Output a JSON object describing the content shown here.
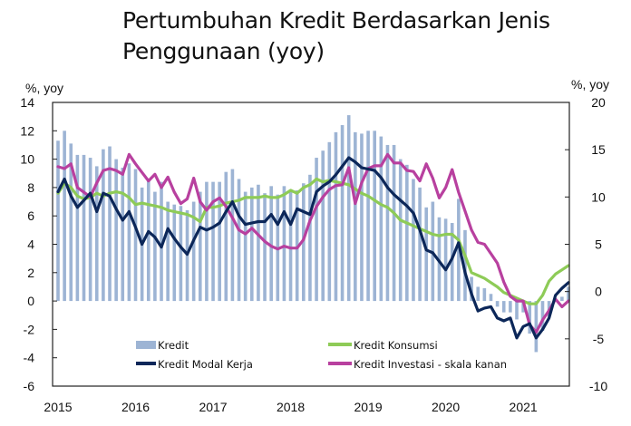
{
  "chart_data": {
    "type": "bar+line",
    "title_line1": "Pertumbuhan Kredit Berdasarkan Jenis",
    "title_line2": "Penggunaan (yoy)",
    "ylabel_left": "%, yoy",
    "ylabel_right": "%, yoy",
    "ylim_left": [
      -6,
      14
    ],
    "yticks_left": [
      "14",
      "12",
      "10",
      "8",
      "6",
      "4",
      "2",
      "0",
      "-2",
      "-4",
      "-6"
    ],
    "ylim_right": [
      -10,
      20
    ],
    "yticks_right": [
      "20",
      "15",
      "10",
      "5",
      "0",
      "-5",
      "-10"
    ],
    "x_tick_labels": [
      "2015",
      "2016",
      "2017",
      "2018",
      "2019",
      "2020",
      "2021"
    ],
    "x_period": "monthly, Jan 2015 - Aug 2021",
    "legend_position": "bottom-inside",
    "series": [
      {
        "name": "Kredit",
        "type": "bar",
        "axis": "left",
        "color": "#9db4d4",
        "values": [
          11.3,
          12.0,
          11.1,
          10.3,
          10.3,
          10.1,
          9.5,
          10.7,
          10.9,
          10.0,
          9.4,
          9.7,
          9.3,
          8.0,
          8.5,
          7.7,
          8.4,
          7.0,
          6.8,
          6.7,
          6.4,
          7.0,
          7.7,
          8.4,
          8.4,
          8.4,
          9.1,
          9.3,
          8.6,
          7.7,
          8.0,
          8.2,
          7.6,
          8.1,
          7.5,
          8.1,
          7.7,
          7.8,
          8.3,
          8.9,
          10.1,
          10.6,
          11.2,
          11.9,
          12.4,
          13.1,
          11.9,
          11.8,
          12.0,
          12.0,
          11.6,
          11.0,
          11.0,
          10.0,
          9.6,
          8.6,
          8.0,
          6.6,
          7.0,
          5.9,
          5.8,
          5.5,
          7.2,
          5.0,
          1.7,
          1.0,
          0.9,
          0.5,
          -0.4,
          -0.8,
          -0.8,
          -1.3,
          -0.8,
          -2.3,
          -3.6,
          -2.1,
          -1.1,
          0.1,
          0.3,
          1.0
        ]
      },
      {
        "name": "Kredit Konsumsi",
        "type": "line",
        "axis": "left",
        "color": "#8ecb57",
        "values": [
          7.6,
          8.3,
          8.0,
          7.4,
          7.2,
          7.3,
          7.6,
          7.4,
          7.6,
          7.7,
          7.6,
          7.3,
          6.8,
          6.9,
          6.8,
          6.7,
          6.6,
          6.4,
          6.3,
          6.2,
          6.1,
          5.9,
          5.6,
          6.6,
          6.6,
          6.7,
          6.9,
          7.0,
          7.1,
          7.3,
          7.3,
          7.3,
          7.4,
          7.3,
          7.3,
          7.5,
          7.8,
          7.6,
          8.0,
          8.2,
          8.6,
          8.4,
          8.5,
          8.4,
          8.3,
          8.2,
          7.9,
          7.6,
          7.4,
          7.1,
          6.8,
          6.6,
          6.2,
          5.7,
          5.5,
          5.3,
          5.1,
          4.9,
          4.7,
          4.6,
          4.7,
          4.7,
          4.3,
          3.2,
          2.0,
          1.8,
          1.6,
          1.3,
          1.0,
          0.6,
          0.4,
          0.2,
          0.0,
          -0.2,
          -0.2,
          0.4,
          1.4,
          1.9,
          2.2,
          2.5
        ]
      },
      {
        "name": "Kredit Modal Kerja",
        "type": "line",
        "axis": "left",
        "color": "#0c2759",
        "values": [
          7.7,
          8.6,
          7.4,
          6.6,
          7.1,
          7.6,
          6.3,
          7.6,
          7.4,
          6.5,
          5.7,
          6.3,
          5.2,
          4.0,
          4.9,
          4.5,
          3.8,
          5.1,
          4.4,
          3.8,
          3.3,
          4.3,
          5.2,
          5.0,
          5.2,
          5.5,
          6.3,
          7.0,
          6.0,
          5.4,
          5.5,
          5.6,
          5.6,
          6.1,
          5.4,
          6.3,
          5.4,
          6.5,
          6.3,
          6.1,
          7.7,
          8.1,
          8.4,
          8.9,
          9.5,
          10.1,
          9.8,
          9.4,
          9.3,
          9.2,
          8.7,
          8.0,
          7.5,
          7.1,
          6.7,
          6.2,
          5.0,
          3.6,
          3.4,
          2.8,
          2.2,
          3.0,
          4.1,
          2.0,
          0.5,
          -0.7,
          -0.5,
          -0.4,
          -1.2,
          -1.4,
          -1.2,
          -2.6,
          -1.8,
          -1.6,
          -2.6,
          -2.0,
          -1.2,
          0.4,
          0.9,
          1.3
        ]
      },
      {
        "name": "Kredit Investasi - skala kanan",
        "type": "line",
        "axis": "right",
        "color": "#b8409f",
        "values": [
          13.2,
          13.0,
          13.5,
          11.0,
          10.5,
          10.0,
          11.5,
          12.8,
          13.0,
          12.8,
          12.4,
          14.5,
          13.5,
          12.6,
          11.7,
          12.4,
          11.0,
          12.1,
          10.5,
          9.3,
          9.8,
          12.0,
          9.5,
          8.6,
          9.5,
          9.9,
          9.0,
          7.8,
          6.5,
          6.1,
          6.7,
          6.0,
          5.3,
          4.8,
          4.5,
          4.8,
          4.6,
          4.6,
          5.5,
          7.5,
          9.0,
          10.0,
          10.8,
          11.2,
          11.3,
          13.1,
          9.3,
          11.5,
          13.0,
          13.3,
          13.3,
          14.5,
          13.6,
          13.6,
          12.8,
          12.7,
          11.7,
          13.5,
          12.0,
          9.9,
          11.0,
          12.9,
          10.5,
          8.5,
          6.5,
          5.2,
          5.0,
          4.0,
          3.0,
          1.0,
          -0.5,
          -1.0,
          -1.0,
          -3.5,
          -4.3,
          -3.0,
          -2.0,
          -0.8,
          -1.6,
          -1.0
        ]
      }
    ]
  }
}
